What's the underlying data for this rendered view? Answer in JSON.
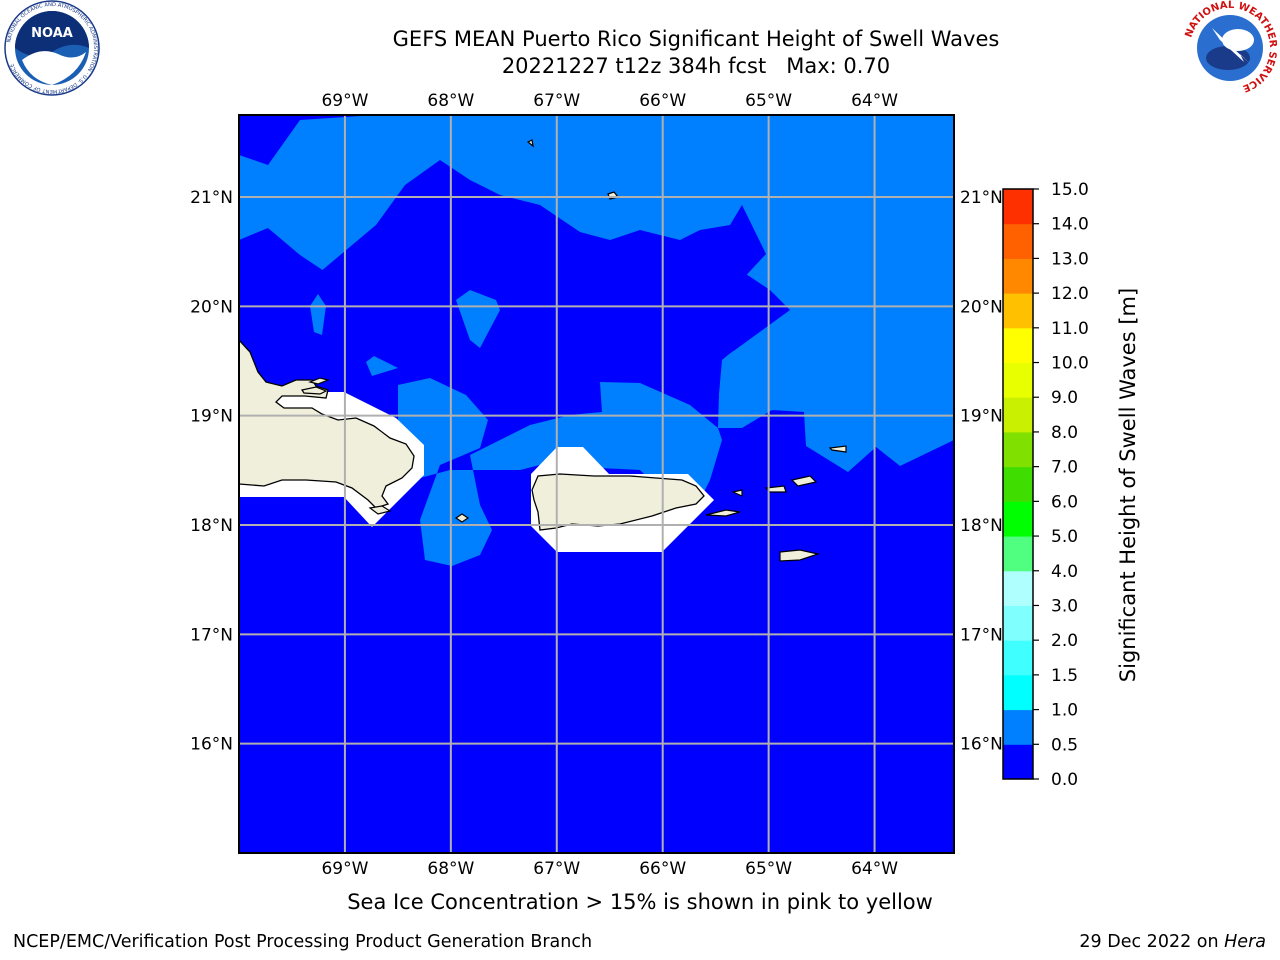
{
  "title": {
    "line1": "GEFS MEAN Puerto Rico Significant Height of Swell Waves",
    "line2": "20221227 t12z 384h fcst   Max: 0.70"
  },
  "map": {
    "lon_range": [
      -70,
      -63.25
    ],
    "lat_range": [
      15,
      21.75
    ],
    "lon_ticks": [
      -69,
      -68,
      -67,
      -66,
      -65,
      -64
    ],
    "lat_ticks": [
      16,
      17,
      18,
      19,
      20,
      21
    ],
    "lon_tick_labels": [
      "69°W",
      "68°W",
      "67°W",
      "66°W",
      "65°W",
      "64°W"
    ],
    "lat_tick_labels": [
      "16°N",
      "17°N",
      "18°N",
      "19°N",
      "20°N",
      "21°N"
    ],
    "gridlines": true,
    "land_label": "",
    "colors": {
      "sea_low": "#0000ff",
      "sea_mid": "#0080ff",
      "land": "#efefdc",
      "coast": "#000000",
      "grid": "#b0b0b0"
    }
  },
  "colorbar": {
    "label": "Significant Height of Swell Waves [m]",
    "tick_labels": [
      "0.0",
      "0.5",
      "1.0",
      "1.5",
      "2.0",
      "3.0",
      "4.0",
      "5.0",
      "6.0",
      "7.0",
      "8.0",
      "9.0",
      "10.0",
      "11.0",
      "12.0",
      "13.0",
      "14.0",
      "15.0"
    ],
    "colors": [
      "#0000ff",
      "#0080ff",
      "#00ffff",
      "#40ffff",
      "#80ffff",
      "#b0ffff",
      "#50ff80",
      "#00ff00",
      "#40dd00",
      "#80e000",
      "#c8f000",
      "#e8ff00",
      "#ffff00",
      "#ffc000",
      "#ff8800",
      "#ff6000",
      "#ff3000",
      "#ff0000"
    ]
  },
  "caption": "Sea Ice Concentration > 15% is shown in pink to yellow",
  "footer": {
    "left": "NCEP/EMC/Verification Post Processing Product Generation Branch",
    "right_date": "29 Dec 2022 on ",
    "right_host": "Hera"
  },
  "logos": {
    "noaa": {
      "center_text": "NOAA",
      "ring_text": "NATIONAL OCEANIC AND ATMOSPHERIC ADMINISTRATION · U.S. DEPARTMENT OF COMMERCE"
    },
    "nws": {
      "ring_text": "NATIONAL WEATHER SERVICE"
    }
  }
}
